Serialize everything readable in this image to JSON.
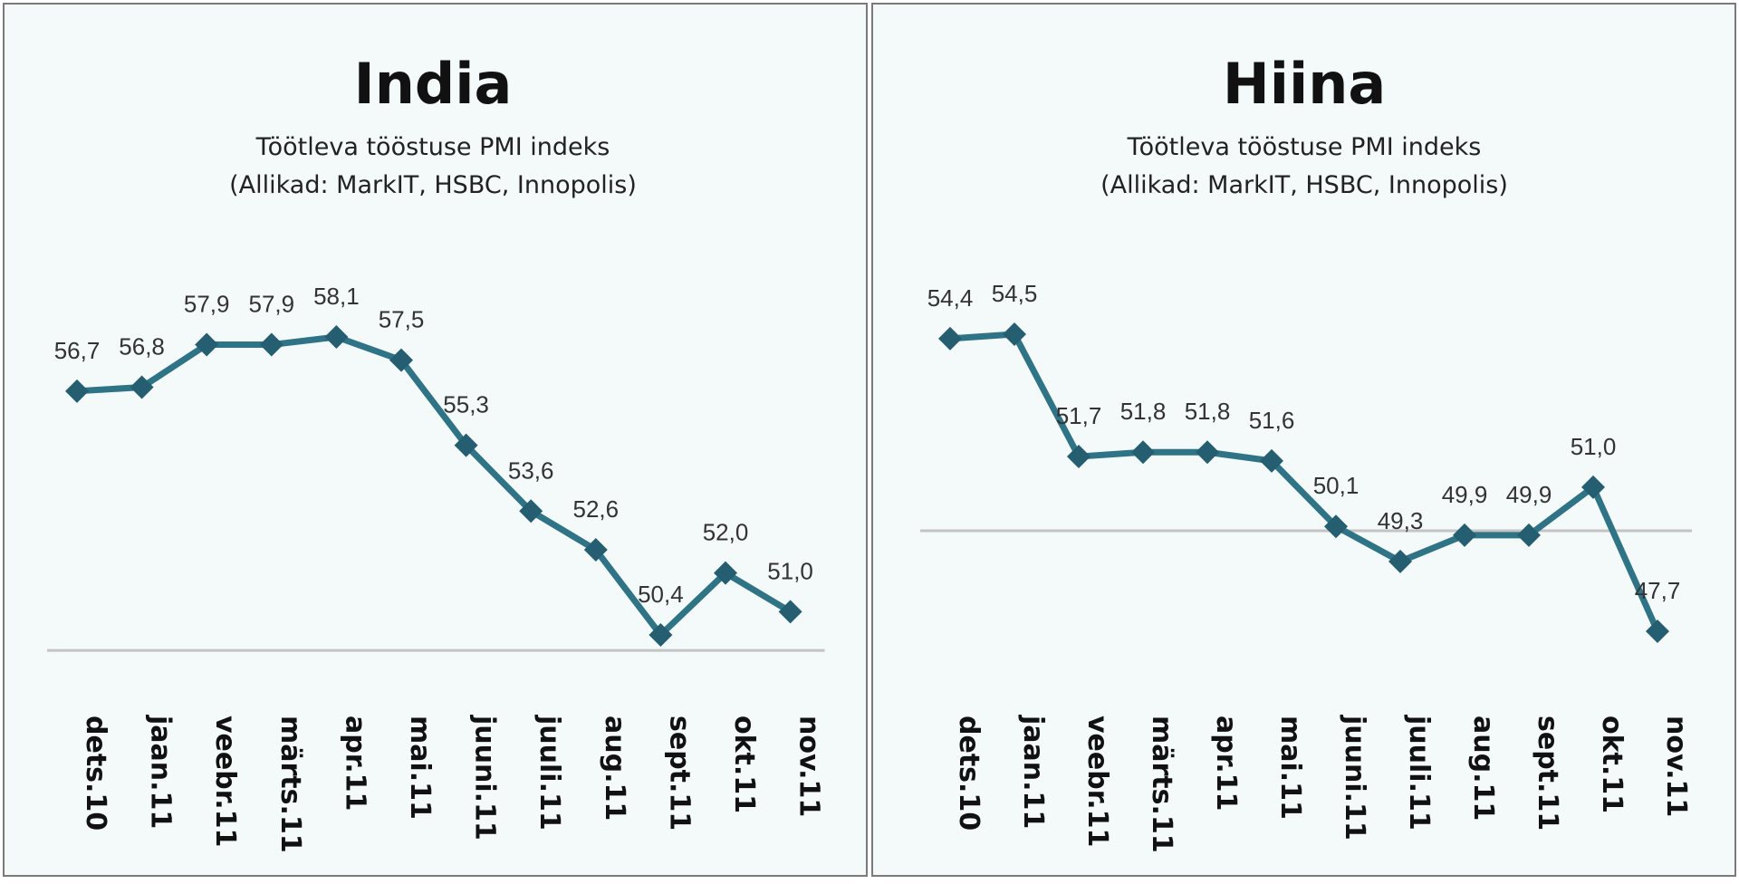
{
  "chart_data": [
    {
      "type": "line",
      "title": "India",
      "subtitle": "Töötleva tööstuse PMI indeks",
      "source": "(Allikad: MarkIT, HSBC, Innopolis)",
      "categories": [
        "dets.10",
        "jaan.11",
        "veebr.11",
        "märts.11",
        "apr.11",
        "mai.11",
        "juuni.11",
        "juuli.11",
        "aug.11",
        "sept.11",
        "okt.11",
        "nov.11"
      ],
      "values": [
        56.7,
        56.8,
        57.9,
        57.9,
        58.1,
        57.5,
        55.3,
        53.6,
        52.6,
        50.4,
        52.0,
        51.0
      ],
      "value_labels": [
        "56,7",
        "56,8",
        "57,9",
        "57,9",
        "58,1",
        "57,5",
        "55,3",
        "53,6",
        "52,6",
        "50,4",
        "52,0",
        "51,0"
      ],
      "reference_line": 50,
      "ylim": [
        50,
        59
      ],
      "grid": false,
      "line_color": "#2f7386",
      "marker_color": "#245e70",
      "reference_color": "#c4c4c4"
    },
    {
      "type": "line",
      "title": "Hiina",
      "subtitle": "Töötleva tööstuse PMI indeks",
      "source": "(Allikad: MarkIT, HSBC, Innopolis)",
      "categories": [
        "dets.10",
        "jaan.11",
        "veebr.11",
        "märts.11",
        "apr.11",
        "mai.11",
        "juuni.11",
        "juuli.11",
        "aug.11",
        "sept.11",
        "okt.11",
        "nov.11"
      ],
      "values": [
        54.4,
        54.5,
        51.7,
        51.8,
        51.8,
        51.6,
        50.1,
        49.3,
        49.9,
        49.9,
        51.0,
        47.7
      ],
      "value_labels": [
        "54,4",
        "54,5",
        "51,7",
        "51,8",
        "51,8",
        "51,6",
        "50,1",
        "49,3",
        "49,9",
        "49,9",
        "51,0",
        "47,7"
      ],
      "reference_line": 50,
      "ylim": [
        47,
        56
      ],
      "grid": false,
      "line_color": "#2f7386",
      "marker_color": "#245e70",
      "reference_color": "#c4c4c4"
    }
  ]
}
